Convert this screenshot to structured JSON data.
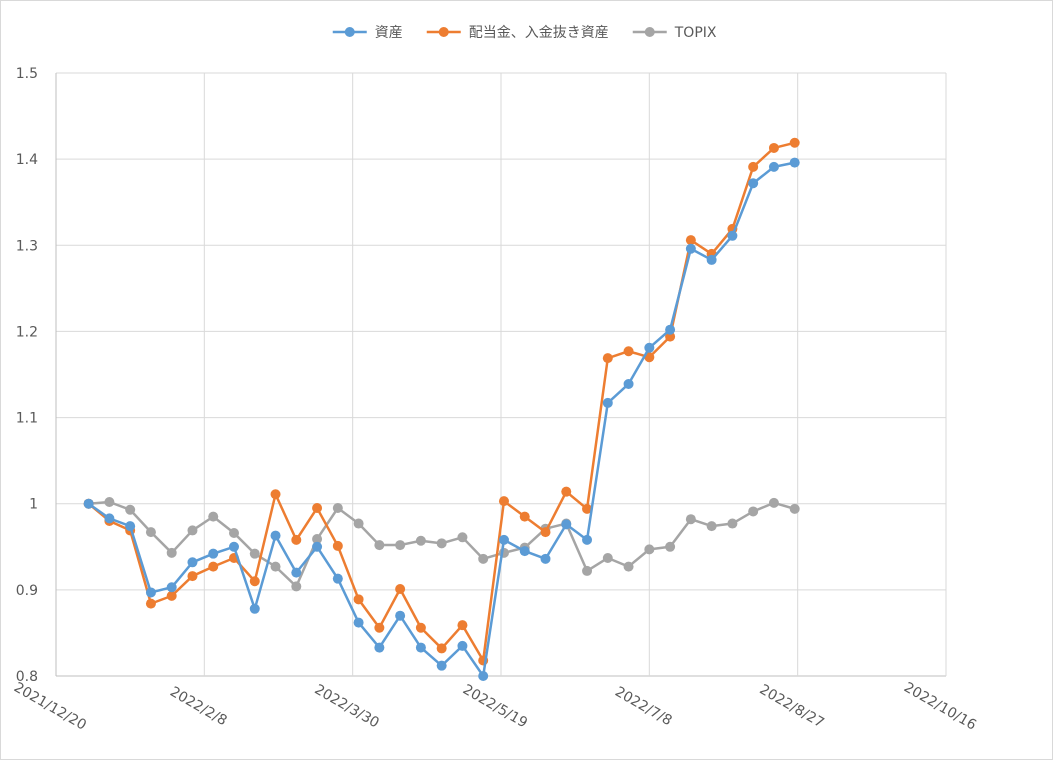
{
  "chart_data": {
    "type": "line",
    "title": "",
    "xlabel": "",
    "ylabel": "",
    "x_axis": {
      "type": "date",
      "range": [
        "2021/12/20",
        "2022/10/16"
      ],
      "tick_labels": [
        "2021/12/20",
        "2022/2/8",
        "2022/3/30",
        "2022/5/19",
        "2022/7/8",
        "2022/8/27",
        "2022/10/16"
      ]
    },
    "y_axis": {
      "range": [
        0.8,
        1.5
      ],
      "tick_labels": [
        "0.8",
        "0.9",
        "1",
        "1.1",
        "1.2",
        "1.3",
        "1.4",
        "1.5"
      ]
    },
    "grid": true,
    "legend_position": "top",
    "x": [
      "2021/12/31",
      "2022/1/7",
      "2022/1/14",
      "2022/1/21",
      "2022/1/28",
      "2022/2/4",
      "2022/2/11",
      "2022/2/18",
      "2022/2/25",
      "2022/3/4",
      "2022/3/11",
      "2022/3/18",
      "2022/3/25",
      "2022/4/1",
      "2022/4/8",
      "2022/4/15",
      "2022/4/22",
      "2022/4/29",
      "2022/5/6",
      "2022/5/13",
      "2022/5/20",
      "2022/5/27",
      "2022/6/3",
      "2022/6/10",
      "2022/6/17",
      "2022/6/24",
      "2022/7/1",
      "2022/7/8",
      "2022/7/15",
      "2022/7/22",
      "2022/7/29",
      "2022/8/5",
      "2022/8/12",
      "2022/8/19",
      "2022/8/26",
      "2022/9/2"
    ],
    "series": [
      {
        "name": "資産",
        "color": "#5b9bd5",
        "values": [
          1.0,
          0.983,
          0.974,
          0.897,
          0.903,
          0.932,
          0.942,
          0.95,
          0.878,
          0.963,
          0.92,
          0.95,
          0.913,
          0.862,
          0.833,
          0.87,
          0.833,
          0.812,
          0.835,
          0.8,
          0.958,
          0.945,
          0.936,
          0.976,
          0.958,
          1.117,
          1.139,
          1.181,
          1.202,
          1.296,
          1.283,
          1.311,
          1.372,
          1.391,
          1.396,
          null
        ]
      },
      {
        "name": "配当金、入金抜き資産",
        "color": "#ed7d31",
        "values": [
          1.0,
          0.98,
          0.969,
          0.884,
          0.893,
          0.916,
          0.927,
          0.937,
          0.91,
          1.011,
          0.958,
          0.995,
          0.951,
          0.889,
          0.856,
          0.901,
          0.856,
          0.832,
          0.859,
          0.818,
          1.003,
          0.985,
          0.967,
          1.014,
          0.994,
          1.169,
          1.177,
          1.17,
          1.194,
          1.306,
          1.29,
          1.319,
          1.391,
          1.413,
          1.419,
          null
        ]
      },
      {
        "name": "TOPIX",
        "color": "#a5a5a5",
        "values": [
          1.0,
          1.002,
          0.993,
          0.967,
          0.943,
          0.969,
          0.985,
          0.966,
          0.942,
          0.927,
          0.904,
          0.959,
          0.995,
          0.977,
          0.952,
          0.952,
          0.957,
          0.954,
          0.961,
          0.936,
          0.943,
          0.949,
          0.971,
          0.977,
          0.922,
          0.937,
          0.927,
          0.947,
          0.95,
          0.982,
          0.974,
          0.977,
          0.991,
          1.001,
          0.994,
          null
        ]
      }
    ]
  }
}
